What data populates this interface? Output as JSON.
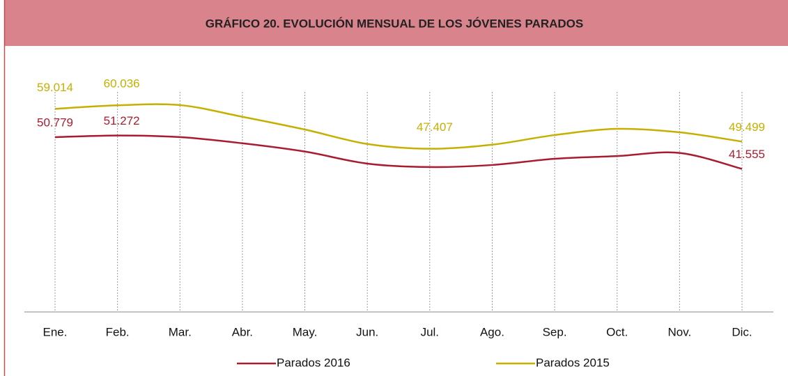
{
  "chart_data": {
    "type": "line",
    "title": "GRÁFICO 20. EVOLUCIÓN MENSUAL DE LOS JÓVENES PARADOS",
    "categories": [
      "Ene.",
      "Feb.",
      "Mar.",
      "Abr.",
      "May.",
      "Jun.",
      "Jul.",
      "Ago.",
      "Sep.",
      "Oct.",
      "Nov.",
      "Dic."
    ],
    "ylim": [
      0,
      70000
    ],
    "series": [
      {
        "name": "Parados 2016",
        "color": "#a81c30",
        "values": [
          50779,
          51272,
          50800,
          49000,
          46600,
          43100,
          42100,
          42700,
          44500,
          45300,
          46200,
          41555
        ],
        "value_labels": [
          "50.779",
          "51.272",
          null,
          null,
          null,
          null,
          null,
          null,
          null,
          null,
          null,
          "41.555"
        ]
      },
      {
        "name": "Parados 2015",
        "color": "#c5b000",
        "values": [
          59014,
          60036,
          60100,
          56700,
          53000,
          48800,
          47407,
          48600,
          51400,
          53200,
          52200,
          49499
        ],
        "value_labels": [
          "59.014",
          "60.036",
          null,
          null,
          null,
          null,
          "47.407",
          null,
          null,
          null,
          null,
          "49.499"
        ]
      }
    ]
  }
}
